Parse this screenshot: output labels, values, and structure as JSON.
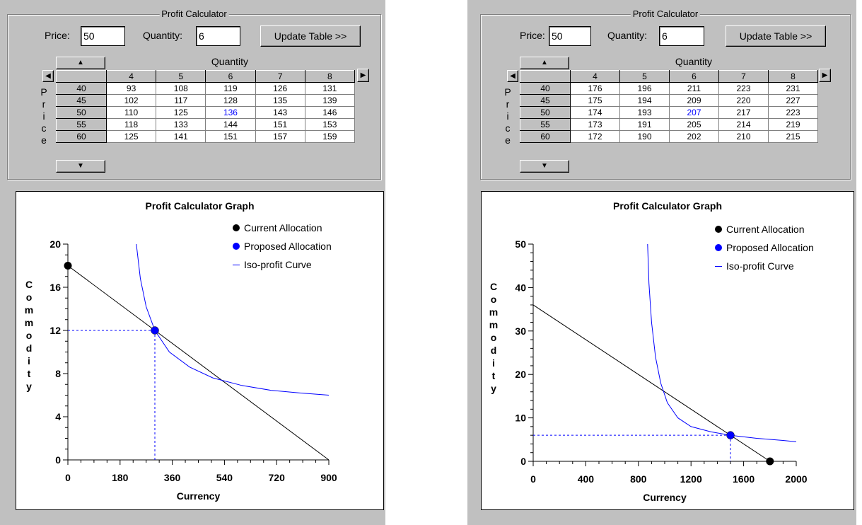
{
  "panels": [
    {
      "id": "left",
      "calculator": {
        "title": "Profit Calculator",
        "price_label": "Price:",
        "price_value": "50",
        "quantity_label": "Quantity:",
        "quantity_value": "6",
        "update_button": "Update Table >>"
      },
      "table": {
        "quantity_header": "Quantity",
        "price_header_letters": [
          "P",
          "r",
          "i",
          "c",
          "e"
        ],
        "columns": [
          "4",
          "5",
          "6",
          "7",
          "8"
        ],
        "rows": [
          {
            "price": "40",
            "values": [
              "93",
              "108",
              "119",
              "126",
              "131"
            ]
          },
          {
            "price": "45",
            "values": [
              "102",
              "117",
              "128",
              "135",
              "139"
            ]
          },
          {
            "price": "50",
            "values": [
              "110",
              "125",
              "136",
              "143",
              "146"
            ]
          },
          {
            "price": "55",
            "values": [
              "118",
              "133",
              "144",
              "151",
              "153"
            ]
          },
          {
            "price": "60",
            "values": [
              "125",
              "141",
              "151",
              "157",
              "159"
            ]
          }
        ],
        "selected": {
          "row": 2,
          "col": 2
        }
      },
      "graph": {
        "title": "Profit Calculator Graph",
        "legend": [
          "Current Allocation",
          "Proposed Allocation",
          "Iso-profit Curve"
        ],
        "colors": {
          "current": "#000000",
          "proposed": "#0000ff",
          "curve": "#0000ff"
        },
        "xlabel": "Currency",
        "ylabel": "Commodity",
        "x_ticks": [
          "0",
          "180",
          "360",
          "540",
          "720",
          "900"
        ],
        "y_ticks": [
          "0",
          "4",
          "8",
          "12",
          "16",
          "20"
        ]
      },
      "chart_data": {
        "type": "line",
        "xlim": [
          0,
          900
        ],
        "ylim": [
          0,
          20
        ],
        "budget_line": {
          "x": [
            0,
            900
          ],
          "y": [
            18,
            0
          ]
        },
        "current_allocation": {
          "x": 0,
          "y": 18
        },
        "proposed_allocation": {
          "x": 300,
          "y": 12
        },
        "iso_profit_curve": {
          "x": [
            236,
            250,
            270,
            300,
            350,
            420,
            500,
            600,
            700,
            800,
            900
          ],
          "y": [
            20,
            16.8,
            14.2,
            12,
            10.0,
            8.6,
            7.6,
            6.9,
            6.45,
            6.2,
            6.0
          ]
        }
      }
    },
    {
      "id": "right",
      "calculator": {
        "title": "Profit Calculator",
        "price_label": "Price:",
        "price_value": "50",
        "quantity_label": "Quantity:",
        "quantity_value": "6",
        "update_button": "Update Table >>"
      },
      "table": {
        "quantity_header": "Quantity",
        "price_header_letters": [
          "P",
          "r",
          "i",
          "c",
          "e"
        ],
        "columns": [
          "4",
          "5",
          "6",
          "7",
          "8"
        ],
        "rows": [
          {
            "price": "40",
            "values": [
              "176",
              "196",
              "211",
              "223",
              "231"
            ]
          },
          {
            "price": "45",
            "values": [
              "175",
              "194",
              "209",
              "220",
              "227"
            ]
          },
          {
            "price": "50",
            "values": [
              "174",
              "193",
              "207",
              "217",
              "223"
            ]
          },
          {
            "price": "55",
            "values": [
              "173",
              "191",
              "205",
              "214",
              "219"
            ]
          },
          {
            "price": "60",
            "values": [
              "172",
              "190",
              "202",
              "210",
              "215"
            ]
          }
        ],
        "selected": {
          "row": 2,
          "col": 2
        }
      },
      "graph": {
        "title": "Profit Calculator Graph",
        "legend": [
          "Current Allocation",
          "Proposed Allocation",
          "Iso-profit Curve"
        ],
        "colors": {
          "current": "#000000",
          "proposed": "#0000ff",
          "curve": "#0000ff"
        },
        "xlabel": "Currency",
        "ylabel": "Commodity",
        "x_ticks": [
          "0",
          "400",
          "800",
          "1200",
          "1600",
          "2000"
        ],
        "y_ticks": [
          "0",
          "10",
          "20",
          "30",
          "40",
          "50"
        ]
      },
      "chart_data": {
        "type": "line",
        "xlim": [
          0,
          2000
        ],
        "ylim": [
          0,
          50
        ],
        "budget_line": {
          "x": [
            0,
            1800
          ],
          "y": [
            36,
            0
          ]
        },
        "current_allocation": {
          "x": 1800,
          "y": 0
        },
        "proposed_allocation": {
          "x": 1500,
          "y": 6
        },
        "iso_profit_curve": {
          "x": [
            870,
            880,
            900,
            930,
            970,
            1020,
            1100,
            1200,
            1350,
            1500,
            1700,
            1900,
            2000
          ],
          "y": [
            50,
            41,
            32,
            24,
            18,
            13.5,
            10,
            8,
            6.8,
            6,
            5.3,
            4.8,
            4.5
          ]
        }
      }
    }
  ]
}
